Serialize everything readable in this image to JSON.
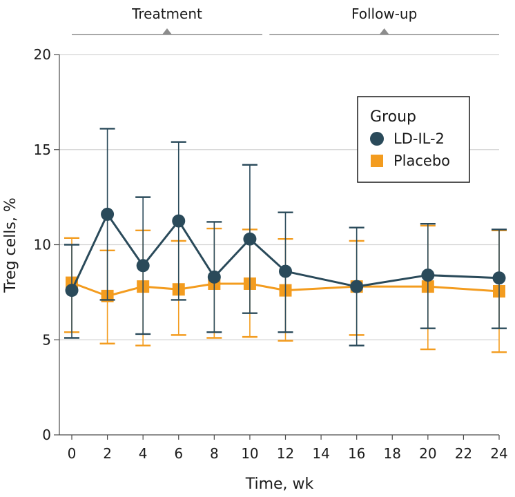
{
  "chart_data": {
    "type": "line",
    "xlabel": "Time, wk",
    "ylabel": "Treg cells, %",
    "xlim": [
      0,
      24
    ],
    "ylim": [
      0,
      20
    ],
    "x_ticks": [
      0,
      2,
      4,
      6,
      8,
      10,
      12,
      14,
      16,
      18,
      20,
      22,
      24
    ],
    "y_ticks": [
      0,
      5,
      10,
      15,
      20
    ],
    "grid": "horizontal",
    "legend": {
      "title": "Group",
      "position": "top-right",
      "entries": [
        "LD-IL-2",
        "Placebo"
      ]
    },
    "phases": [
      {
        "label": "Treatment",
        "start": 0,
        "end": 10.7
      },
      {
        "label": "Follow-up",
        "start": 11.1,
        "end": 24
      }
    ],
    "series": [
      {
        "name": "LD-IL-2",
        "color": "#2a4a5a",
        "marker": "circle",
        "x": [
          0,
          2,
          4,
          6,
          8,
          10,
          12,
          16,
          20,
          24
        ],
        "y": [
          7.6,
          11.6,
          8.9,
          11.25,
          8.3,
          10.3,
          8.6,
          7.8,
          8.4,
          8.25
        ],
        "err_low": [
          5.1,
          7.1,
          5.3,
          7.1,
          5.4,
          6.4,
          5.4,
          4.7,
          5.6,
          5.6
        ],
        "err_high": [
          10.0,
          16.1,
          12.5,
          15.4,
          11.2,
          14.2,
          11.7,
          10.9,
          11.1,
          10.8
        ]
      },
      {
        "name": "Placebo",
        "color": "#f39c1f",
        "marker": "square",
        "x": [
          0,
          2,
          4,
          6,
          8,
          10,
          12,
          16,
          20,
          24
        ],
        "y": [
          8.0,
          7.3,
          7.8,
          7.65,
          7.95,
          7.95,
          7.6,
          7.8,
          7.8,
          7.55
        ],
        "err_low": [
          5.4,
          4.8,
          4.7,
          5.25,
          5.1,
          5.15,
          4.95,
          5.25,
          4.5,
          4.35
        ],
        "err_high": [
          10.35,
          9.7,
          10.75,
          10.2,
          10.85,
          10.8,
          10.3,
          10.2,
          11.0,
          10.75
        ]
      }
    ]
  }
}
